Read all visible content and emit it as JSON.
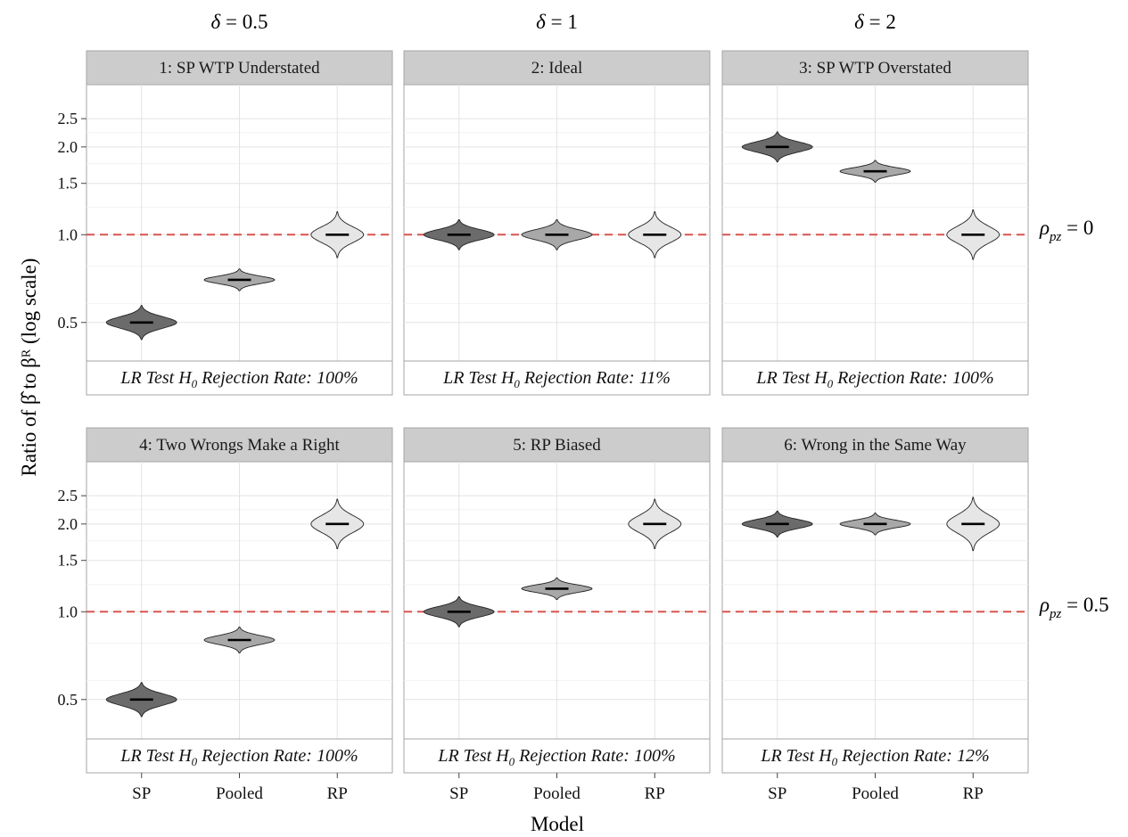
{
  "chart_data": {
    "type": "violin",
    "title": "",
    "xlabel": "Model",
    "ylabel": "Ratio of β̂ to βᴿ (log scale)",
    "y_scale": "log",
    "yticks": [
      "0.5",
      "1.0",
      "1.5",
      "2.0",
      "2.5"
    ],
    "categories": [
      "SP",
      "Pooled",
      "RP"
    ],
    "reference_line": {
      "y": 1.0,
      "style": "dashed",
      "color": "#d9534f"
    },
    "column_labels": [
      "δ = 0.5",
      "δ = 1",
      "δ = 2"
    ],
    "row_labels": [
      {
        "symbol": "ρ",
        "sub": "pz",
        "value": "= 0"
      },
      {
        "symbol": "ρ",
        "sub": "pz",
        "value": "= 0.5"
      }
    ],
    "fill_colors": {
      "SP": "#6b6b6b",
      "Pooled": "#a8a8a8",
      "RP": "#e6e6e6"
    },
    "panels": [
      {
        "title": "1: SP WTP Understated",
        "footer_prefix": "LR Test ",
        "footer_sub": "0",
        "footer_suffix": " Rejection Rate: 100%",
        "medians": [
          0.5,
          0.7,
          1.0
        ],
        "spreads": [
          0.08,
          0.05,
          0.11
        ]
      },
      {
        "title": "2: Ideal",
        "footer_prefix": "LR Test ",
        "footer_sub": "0",
        "footer_suffix": " Rejection Rate: 11%",
        "medians": [
          1.0,
          1.0,
          1.0
        ],
        "spreads": [
          0.07,
          0.07,
          0.11
        ]
      },
      {
        "title": "3: SP WTP Overstated",
        "footer_prefix": "LR Test ",
        "footer_sub": "0",
        "footer_suffix": " Rejection Rate: 100%",
        "medians": [
          2.0,
          1.65,
          1.0
        ],
        "spreads": [
          0.07,
          0.05,
          0.12
        ]
      },
      {
        "title": "4: Two Wrongs Make a Right",
        "footer_prefix": "LR Test ",
        "footer_sub": "0",
        "footer_suffix": " Rejection Rate: 100%",
        "medians": [
          0.5,
          0.8,
          2.0
        ],
        "spreads": [
          0.08,
          0.06,
          0.12
        ]
      },
      {
        "title": "5: RP Biased",
        "footer_prefix": "LR Test ",
        "footer_sub": "0",
        "footer_suffix": " Rejection Rate: 100%",
        "medians": [
          1.0,
          1.2,
          2.0
        ],
        "spreads": [
          0.07,
          0.05,
          0.12
        ]
      },
      {
        "title": "6: Wrong in the Same Way",
        "footer_prefix": "LR Test ",
        "footer_sub": "0",
        "footer_suffix": " Rejection Rate: 12%",
        "medians": [
          2.0,
          2.0,
          2.0
        ],
        "spreads": [
          0.06,
          0.05,
          0.13
        ]
      }
    ]
  }
}
